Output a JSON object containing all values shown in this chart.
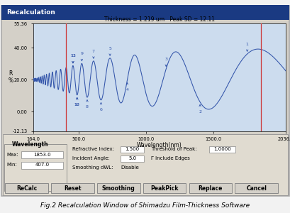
{
  "title": "Fig.2 Recalculation Window of Shimadzu Film-Thickness Software",
  "window_title": "Recalculation",
  "plot_title": "Thickness = 1.219 um   Peak SD = 12.11",
  "xlabel": "Wavelength(nm)",
  "ylabel": "R\n%",
  "xlim": [
    164.0,
    2036.0
  ],
  "ylim": [
    -12.13,
    55.36
  ],
  "curve_color": "#3355aa",
  "bg_color": "#ccdcee",
  "window_bg": "#d4d0c8",
  "panel_bg": "#e0dbd0",
  "title_bar_color": "#1a3a82",
  "vline1_x": 407.0,
  "vline2_x": 1853.0,
  "vline_color": "#cc3333",
  "fields": {
    "max_wl": "1853.0",
    "min_wl": "407.0",
    "ref_index": "1.500",
    "inc_angle": "5.0",
    "smoothing": "Disable",
    "threshold": "1.0000"
  },
  "buttons": [
    "ReCalc",
    "Reset",
    "Smoothing",
    "PeakPick",
    "Replace",
    "Cancel"
  ],
  "fig_bg": "#f2f2f2"
}
